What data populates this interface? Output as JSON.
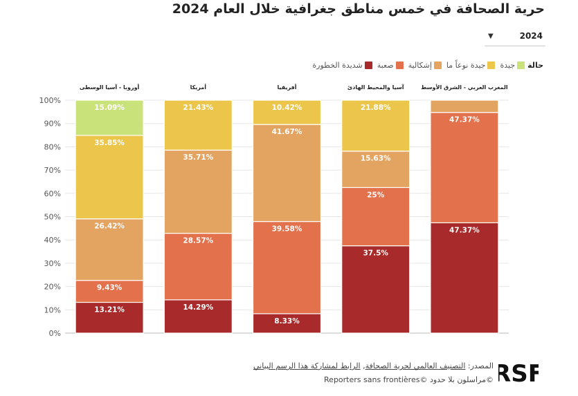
{
  "title": "حرية الصحافة في خمس مناطق جغرافية خلال العام 2024",
  "year_selector": {
    "value": "2024",
    "icon": "caret-down-icon"
  },
  "legend": {
    "title": "حالة",
    "items": [
      {
        "label": "جيدة",
        "color": "#c9e27a"
      },
      {
        "label": "جيدة نوعاً ما",
        "color": "#ecc64a"
      },
      {
        "label": "إشكالية",
        "color": "#e4a461"
      },
      {
        "label": "صعبة",
        "color": "#e2714c"
      },
      {
        "label": "شديدة الخطورة",
        "color": "#a92a2a"
      }
    ]
  },
  "chart_data": {
    "type": "bar",
    "stacked": true,
    "categories": [
      "أوروبا - آسيا الوسطى",
      "أمريكا",
      "أفريقيا",
      "آسيا والمحيط الهادئ",
      "المغرب العربي - الشرق الأوسط"
    ],
    "series": [
      {
        "name": "شديدة الخطورة",
        "color": "#a92a2a",
        "values": [
          13.21,
          14.29,
          8.33,
          37.5,
          47.37
        ]
      },
      {
        "name": "صعبة",
        "color": "#e2714c",
        "values": [
          9.43,
          28.57,
          39.58,
          25,
          47.37
        ]
      },
      {
        "name": "إشكالية",
        "color": "#e4a461",
        "values": [
          26.42,
          35.71,
          41.67,
          15.63,
          5.26
        ]
      },
      {
        "name": "جيدة نوعاً ما",
        "color": "#ecc64a",
        "values": [
          35.85,
          21.43,
          10.42,
          21.88,
          0
        ]
      },
      {
        "name": "جيدة",
        "color": "#c9e27a",
        "values": [
          15.09,
          0,
          0,
          0,
          0
        ]
      }
    ],
    "data_labels": [
      [
        "13.21%",
        "14.29%",
        "8.33%",
        "37.5%",
        "47.37%"
      ],
      [
        "9.43%",
        "28.57%",
        "39.58%",
        "25%",
        "47.37%"
      ],
      [
        "26.42%",
        "35.71%",
        "41.67%",
        "15.63%",
        ""
      ],
      [
        "35.85%",
        "21.43%",
        "10.42%",
        "21.88%",
        ""
      ],
      [
        "15.09%",
        "",
        "",
        "",
        ""
      ]
    ],
    "y_ticks": [
      0,
      10,
      20,
      30,
      40,
      50,
      60,
      70,
      80,
      90,
      100
    ],
    "y_tick_labels": [
      "0%",
      "10%",
      "20%",
      "30%",
      "40%",
      "50%",
      "60%",
      "70%",
      "80%",
      "90%",
      "100%"
    ],
    "ylim": [
      0,
      100
    ],
    "grid": true,
    "legend_position": "top-right"
  },
  "footer": {
    "source_prefix": "المصدر:",
    "source_link": "التصنيف العالمي لحرية الصحافة",
    "separator": ",",
    "share_link": "الرابط لمشاركة هذا الرسم البياني",
    "credit": "Reporters sans frontières© مراسلون بلا حدود©",
    "logo_text": "RSF"
  }
}
